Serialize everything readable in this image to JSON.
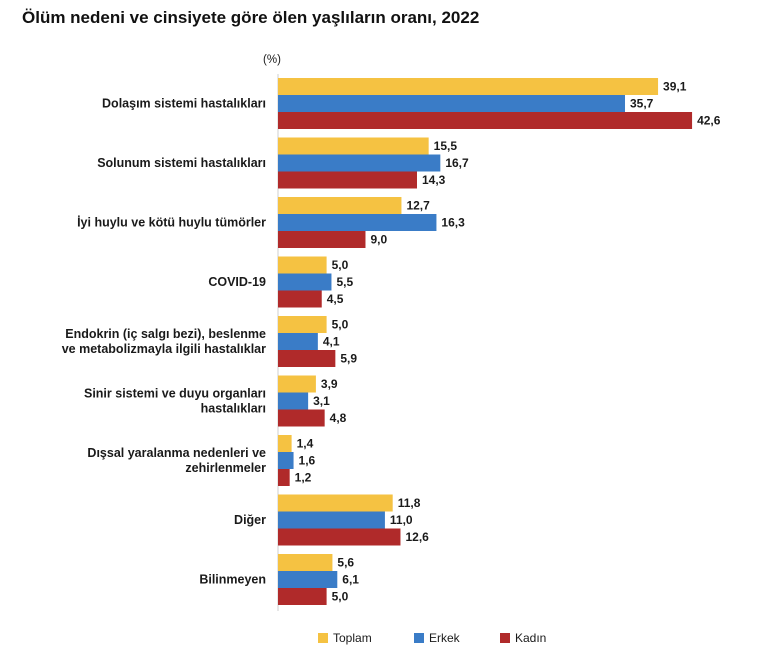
{
  "chart_data": {
    "type": "bar",
    "orientation": "horizontal",
    "title": "Ölüm nedeni ve cinsiyete göre ölen yaşlıların oranı, 2022",
    "unit": "(%)",
    "categories": [
      [
        "Dolaşım sistemi hastalıkları"
      ],
      [
        "Solunum sistemi hastalıkları"
      ],
      [
        "İyi huylu ve kötü huylu tümörler"
      ],
      [
        "COVID-19"
      ],
      [
        "Endokrin (iç salgı bezi), beslenme",
        "ve metabolizmayla ilgili hastalıklar"
      ],
      [
        "Sinir sistemi ve duyu organları",
        "hastalıkları"
      ],
      [
        "Dışsal yaralanma nedenleri ve",
        "zehirlenmeler"
      ],
      [
        "Diğer"
      ],
      [
        "Bilinmeyen"
      ]
    ],
    "series": [
      {
        "name": "Toplam",
        "color": "#f5c242",
        "values": [
          39.1,
          15.5,
          12.7,
          5.0,
          5.0,
          3.9,
          1.4,
          11.8,
          5.6
        ],
        "labels": [
          "39,1",
          "15,5",
          "12,7",
          "5,0",
          "5,0",
          "3,9",
          "1,4",
          "11,8",
          "5,6"
        ]
      },
      {
        "name": "Erkek",
        "color": "#3a7cc7",
        "values": [
          35.7,
          16.7,
          16.3,
          5.5,
          4.1,
          3.1,
          1.6,
          11.0,
          6.1
        ],
        "labels": [
          "35,7",
          "16,7",
          "16,3",
          "5,5",
          "4,1",
          "3,1",
          "1,6",
          "11,0",
          "6,1"
        ]
      },
      {
        "name": "Kadın",
        "color": "#b02a2a",
        "values": [
          42.6,
          14.3,
          9.0,
          4.5,
          5.9,
          4.8,
          1.2,
          12.6,
          5.0
        ],
        "labels": [
          "42,6",
          "14,3",
          "9,0",
          "4,5",
          "5,9",
          "4,8",
          "1,2",
          "12,6",
          "5,0"
        ]
      }
    ],
    "xlim": [
      0,
      42.6
    ],
    "grid": false,
    "legend": "bottom-center"
  }
}
